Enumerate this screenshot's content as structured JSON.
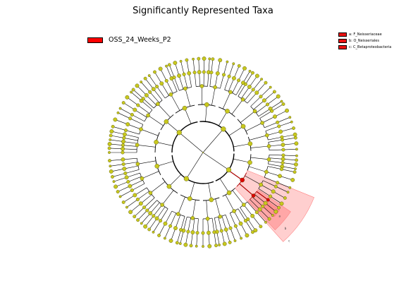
{
  "figure": {
    "title": "Significantly Represented Taxa"
  },
  "class_legend": {
    "label": "OSS_24_Weeks_P2",
    "color": "#ff0000"
  },
  "clade_legend": {
    "color": "#e81010",
    "items": [
      {
        "key": "a",
        "label": "a: F_Neisseriaceae"
      },
      {
        "key": "b",
        "label": "b: O_Neisseriales"
      },
      {
        "key": "c",
        "label": "c: C_Betaproteobacteria"
      }
    ]
  },
  "highlight": {
    "fill": "#ff8080",
    "edge_color": "#aa0000",
    "node_color": "#e00000",
    "sector_letters": [
      "a",
      "b",
      "c"
    ]
  },
  "colors": {
    "node_fill": "#c8c81e",
    "node_stroke": "#4a4a00",
    "edge": "#000000"
  }
}
